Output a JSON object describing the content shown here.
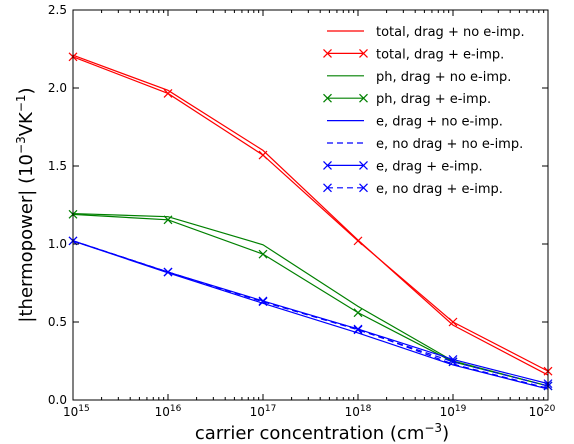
{
  "chart_data": {
    "type": "line",
    "xscale": "log",
    "x": [
      1000000000000000.0,
      1e+16,
      1e+17,
      1e+18,
      1e+19,
      1e+20
    ],
    "xlim": [
      1000000000000000.0,
      1e+20
    ],
    "ylim": [
      0.0,
      2.5
    ],
    "x_tick_labels": [
      {
        "value": 1000000000000000.0,
        "base": "10",
        "exp": "15"
      },
      {
        "value": 1e+16,
        "base": "10",
        "exp": "16"
      },
      {
        "value": 1e+17,
        "base": "10",
        "exp": "17"
      },
      {
        "value": 1e+18,
        "base": "10",
        "exp": "18"
      },
      {
        "value": 1e+19,
        "base": "10",
        "exp": "19"
      },
      {
        "value": 1e+20,
        "base": "10",
        "exp": "20"
      }
    ],
    "y_ticks": [
      0.0,
      0.5,
      1.0,
      1.5,
      2.0,
      2.5
    ],
    "y_tick_labels": [
      "0.0",
      "0.5",
      "1.0",
      "1.5",
      "2.0",
      "2.5"
    ],
    "xlabel": {
      "main": "carrier concentration (cm",
      "sup": "−3",
      "end": ")"
    },
    "ylabel": {
      "main": "|thermopower| (10",
      "sup": "−3",
      "mid": "VK",
      "sup2": "−1",
      "end": ")"
    },
    "legend_position": "top-right",
    "grid": false,
    "series": [
      {
        "name": "total, drag + no e-imp.",
        "color": "#ff0000",
        "dash": "solid",
        "marker": "none",
        "values": [
          2.21,
          1.985,
          1.6,
          1.025,
          0.48,
          0.16
        ]
      },
      {
        "name": "total, drag + e-imp.",
        "color": "#ff0000",
        "dash": "solid",
        "marker": "x",
        "values": [
          2.2,
          1.965,
          1.57,
          1.02,
          0.5,
          0.185
        ]
      },
      {
        "name": "ph, drag + no e-imp.",
        "color": "#008000",
        "dash": "solid",
        "marker": "none",
        "values": [
          1.195,
          1.175,
          0.995,
          0.6,
          0.25,
          0.09
        ]
      },
      {
        "name": "ph, drag + e-imp.",
        "color": "#008000",
        "dash": "solid",
        "marker": "x",
        "values": [
          1.19,
          1.155,
          0.935,
          0.56,
          0.245,
          0.09
        ]
      },
      {
        "name": "e, drag + no e-imp.",
        "color": "#0000ff",
        "dash": "solid",
        "marker": "none",
        "values": [
          1.02,
          0.815,
          0.62,
          0.43,
          0.225,
          0.07
        ]
      },
      {
        "name": "e, no drag + no e-imp.",
        "color": "#0000ff",
        "dash": "dashed",
        "marker": "none",
        "values": [
          1.02,
          0.82,
          0.63,
          0.455,
          0.23,
          0.075
        ]
      },
      {
        "name": "e, drag + e-imp.",
        "color": "#0000ff",
        "dash": "solid",
        "marker": "x",
        "values": [
          1.02,
          0.82,
          0.635,
          0.455,
          0.26,
          0.105
        ]
      },
      {
        "name": "e, no drag + e-imp.",
        "color": "#0000ff",
        "dash": "dashed",
        "marker": "x",
        "values": [
          1.02,
          0.82,
          0.63,
          0.45,
          0.245,
          0.09
        ]
      }
    ]
  }
}
